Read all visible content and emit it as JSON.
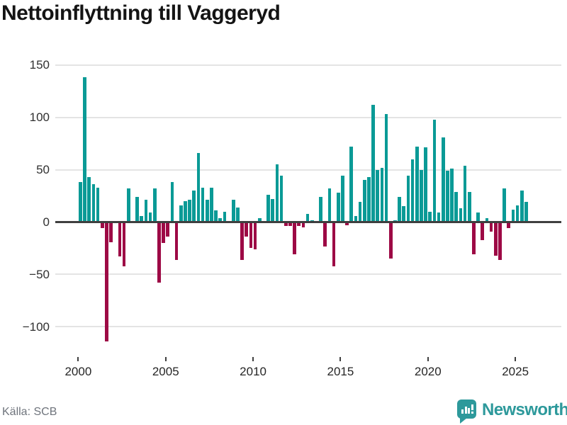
{
  "title": "Nettoinflyttning till Vaggeryd",
  "source": "Källa: SCB",
  "branding": {
    "logo_text": "Newsworthy",
    "logo_icon": "speech-bubble-bar-chart-icon",
    "color": "#2d999b"
  },
  "chart_data": {
    "type": "bar",
    "title": "Nettoinflyttning till Vaggeryd",
    "frequency": "quarterly",
    "x_start": "2000-Q1",
    "x_end": "2025-Q3",
    "x_tick_labels": [
      "2000",
      "2005",
      "2010",
      "2015",
      "2020",
      "2025"
    ],
    "y_ticks": [
      150,
      100,
      50,
      0,
      -50,
      -100
    ],
    "ylim": [
      -125,
      155
    ],
    "grid": "horizontal",
    "legend": "none",
    "xlabel": "",
    "ylabel": "",
    "series": [
      {
        "name": "Nettoinflyttning",
        "values": [
          38,
          138,
          43,
          36,
          33,
          -6,
          -114,
          -19,
          0,
          -33,
          -42,
          32,
          0,
          24,
          6,
          21,
          9,
          32,
          -58,
          -20,
          -14,
          38,
          -36,
          16,
          20,
          21,
          30,
          66,
          33,
          21,
          33,
          11,
          4,
          10,
          0,
          21,
          14,
          -36,
          -14,
          -25,
          -26,
          4,
          0,
          26,
          22,
          55,
          44,
          -4,
          -4,
          -31,
          -4,
          -5,
          8,
          2,
          0,
          24,
          -23,
          32,
          -42,
          28,
          44,
          -3,
          72,
          6,
          19,
          40,
          43,
          112,
          50,
          52,
          103,
          -35,
          2,
          24,
          15,
          44,
          60,
          72,
          50,
          71,
          10,
          98,
          9,
          81,
          49,
          51,
          29,
          13,
          54,
          29,
          -31,
          9,
          -17,
          4,
          -9,
          -32,
          -36,
          32,
          -6,
          12,
          16,
          30,
          19
        ]
      }
    ],
    "colors": {
      "positive": "#0a9a96",
      "negative": "#9d0945",
      "gridline": "#e4e4e4",
      "zero_line": "#3f3f3f",
      "axis_text": "#303030"
    }
  }
}
